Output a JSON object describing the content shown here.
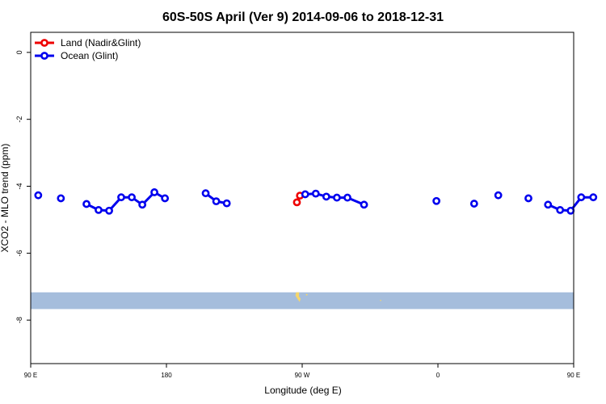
{
  "chart_data": {
    "type": "line",
    "title": "60S-50S April (Ver 9)   2014-09-06 to 2018-12-31",
    "xlabel": "Longitude (deg E)",
    "ylabel": "XCO2 - MLO trend (ppm)",
    "xlim": [
      90,
      450
    ],
    "ylim": [
      -9.3,
      0.6
    ],
    "x_ticks": [
      {
        "value": 90,
        "label": "90 E"
      },
      {
        "value": 180,
        "label": "180"
      },
      {
        "value": 270,
        "label": "90 W"
      },
      {
        "value": 360,
        "label": "0"
      },
      {
        "value": 450,
        "label": "90 E"
      },
      {
        "value": 540,
        "label": "180"
      }
    ],
    "y_ticks": [
      {
        "value": 0,
        "label": "0"
      },
      {
        "value": -2,
        "label": "-2"
      },
      {
        "value": -4,
        "label": "-4"
      },
      {
        "value": -6,
        "label": "-6"
      },
      {
        "value": -8,
        "label": "-8"
      }
    ],
    "grid": false,
    "legend_position": "top-left",
    "map_strip": {
      "y_range": [
        -7.17,
        -7.67
      ],
      "ocean_color": "#a5bddc",
      "land_color": "#f5d66b"
    },
    "series": [
      {
        "name": "Land (Nadir&Glint)",
        "color": "#ee0000",
        "segments": [
          [
            [
              266.5,
              -4.48
            ],
            [
              268.5,
              -4.28
            ]
          ]
        ]
      },
      {
        "name": "Ocean (Glint)",
        "color": "#0000ee",
        "segments": [
          [
            [
              95,
              -4.27
            ]
          ],
          [
            [
              110,
              -4.36
            ]
          ],
          [
            [
              127,
              -4.53
            ],
            [
              135,
              -4.71
            ],
            [
              142,
              -4.73
            ],
            [
              150,
              -4.33
            ],
            [
              157,
              -4.33
            ],
            [
              164,
              -4.55
            ],
            [
              172,
              -4.18
            ],
            [
              179,
              -4.36
            ]
          ],
          [
            [
              206,
              -4.21
            ],
            [
              213,
              -4.45
            ],
            [
              220,
              -4.51
            ]
          ],
          [
            [
              272,
              -4.24
            ],
            [
              279,
              -4.22
            ],
            [
              286,
              -4.31
            ],
            [
              293,
              -4.34
            ],
            [
              300,
              -4.34
            ],
            [
              311,
              -4.55
            ]
          ],
          [
            [
              359,
              -4.44
            ]
          ],
          [
            [
              384,
              -4.52
            ]
          ],
          [
            [
              400,
              -4.27
            ]
          ],
          [
            [
              420,
              -4.36
            ]
          ],
          [
            [
              433,
              -4.55
            ],
            [
              441,
              -4.71
            ],
            [
              448,
              -4.73
            ],
            [
              455,
              -4.33
            ],
            [
              463,
              -4.33
            ]
          ]
        ]
      }
    ]
  }
}
